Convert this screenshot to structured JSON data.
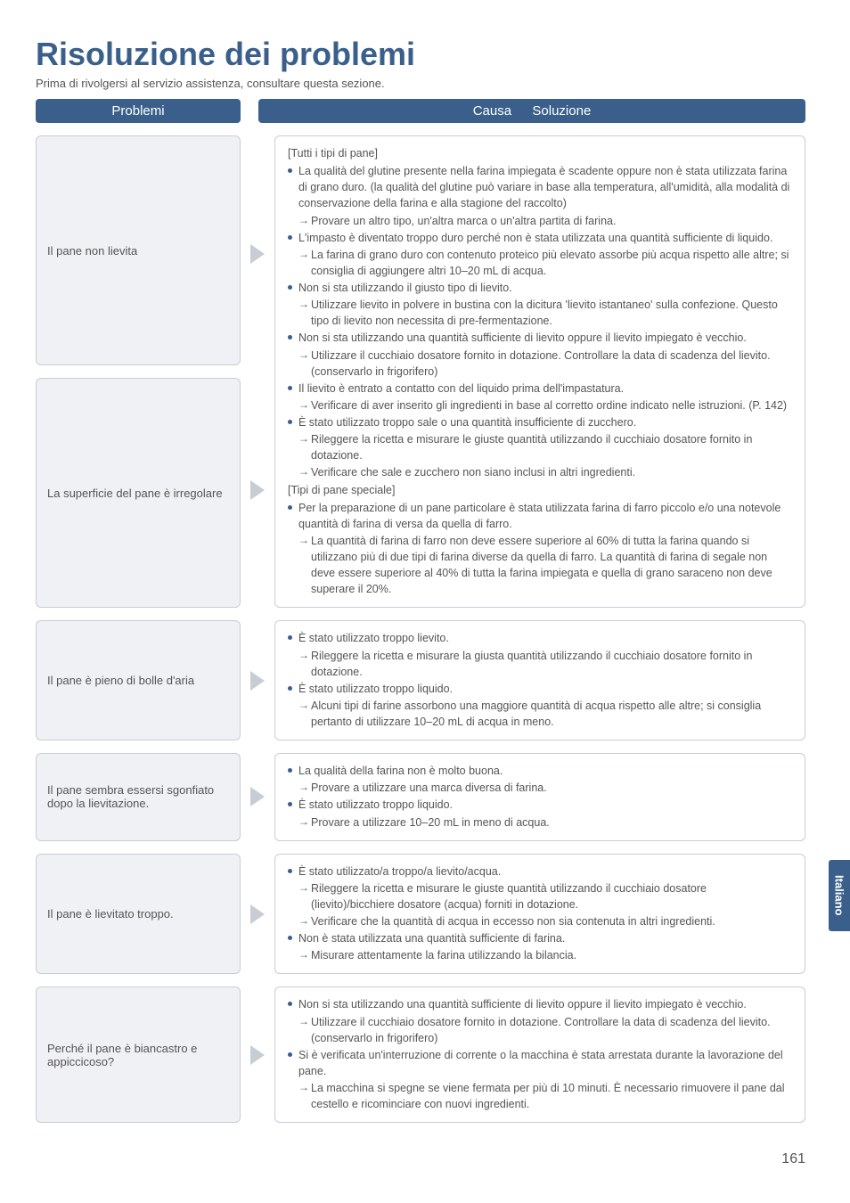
{
  "page": {
    "title": "Risoluzione dei problemi",
    "subtitle": "Prima di rivolgersi al servizio assistenza, consultare questa sezione.",
    "header_problems": "Problemi",
    "header_solution": "Causa → Soluzione",
    "side_tab": "Italiano",
    "page_number": "161"
  },
  "colors": {
    "brand": "#3a5f8a",
    "box_border": "#c8cdd4",
    "box_bg": "#f0f1f4",
    "text": "#555555",
    "bg": "#ffffff"
  },
  "rows": [
    {
      "problems": [
        "Il pane non lievita",
        "La superficie del pane è irregolare"
      ],
      "solution": {
        "groups": [
          {
            "type": "label",
            "text": "[Tutti i tipi di pane]"
          },
          {
            "type": "bul",
            "text": "La qualità del glutine presente nella farina impiegata è scadente oppure non è stata utilizzata farina di grano duro. (la qualità del glutine può variare in base alla temperatura, all'umidità, alla modalità di conservazione della farina e alla stagione del raccolto)"
          },
          {
            "type": "sol",
            "text": "Provare un altro tipo, un'altra marca o un'altra partita di farina."
          },
          {
            "type": "bul",
            "text": "L'impasto è diventato troppo duro perché non è stata utilizzata una quantità sufficiente di liquido."
          },
          {
            "type": "sol",
            "text": "La farina di grano duro con contenuto proteico più elevato assorbe più acqua rispetto alle altre; si consiglia di aggiungere altri 10–20 mL di acqua."
          },
          {
            "type": "bul",
            "text": "Non si sta utilizzando il giusto tipo di lievito."
          },
          {
            "type": "sol",
            "text": "Utilizzare lievito in polvere in bustina con la dicitura 'lievito istantaneo' sulla confezione. Questo tipo di lievito non necessita di pre-fermentazione."
          },
          {
            "type": "bul",
            "text": "Non si sta utilizzando una quantità sufficiente di lievito oppure il lievito impiegato è vecchio."
          },
          {
            "type": "sol",
            "text": "Utilizzare il cucchiaio dosatore fornito in dotazione. Controllare la data di scadenza del lievito. (conservarlo in frigorifero)"
          },
          {
            "type": "bul",
            "text": "Il lievito è entrato a contatto con del liquido prima dell'impastatura."
          },
          {
            "type": "sol",
            "text": "Verificare di aver inserito gli ingredienti in base al corretto ordine indicato nelle istruzioni. (P. 142)"
          },
          {
            "type": "bul",
            "text": "È stato utilizzato troppo sale o una quantità insufficiente di zucchero."
          },
          {
            "type": "sol",
            "text": "Rileggere la ricetta e misurare le giuste quantità utilizzando il cucchiaio dosatore fornito in dotazione."
          },
          {
            "type": "sol",
            "text": "Verificare che sale e zucchero non siano inclusi in altri ingredienti."
          },
          {
            "type": "label",
            "text": "[Tipi di pane speciale]"
          },
          {
            "type": "bul",
            "text": "Per la preparazione di un pane particolare è stata utilizzata farina di farro piccolo e/o una notevole quantità di farina di versa da quella di farro."
          },
          {
            "type": "sol",
            "text": "La quantità di farina di farro non deve essere superiore al 60% di tutta la farina quando si utilizzano più di due tipi di farina diverse da quella di farro. La quantità di farina di segale non deve essere superiore al 40% di tutta la farina impiegata e quella di grano saraceno non deve superare il 20%."
          }
        ]
      }
    },
    {
      "problems": [
        "Il pane è pieno di bolle d'aria"
      ],
      "solution": {
        "groups": [
          {
            "type": "bul",
            "text": "È stato utilizzato troppo lievito."
          },
          {
            "type": "sol",
            "text": "Rileggere la ricetta e misurare la giusta quantità utilizzando il cucchiaio dosatore fornito in dotazione."
          },
          {
            "type": "bul",
            "text": "È stato utilizzato troppo liquido."
          },
          {
            "type": "sol",
            "text": "Alcuni tipi di farine assorbono una maggiore quantità di acqua rispetto alle altre; si consiglia pertanto di utilizzare 10–20 mL di acqua in meno."
          }
        ]
      }
    },
    {
      "problems": [
        "Il pane sembra essersi sgonfiato dopo la lievitazione."
      ],
      "solution": {
        "groups": [
          {
            "type": "bul",
            "text": "La qualità della farina non è molto buona."
          },
          {
            "type": "sol",
            "text": "Provare a utilizzare una marca diversa di farina."
          },
          {
            "type": "bul",
            "text": "È stato utilizzato troppo liquido."
          },
          {
            "type": "sol",
            "text": "Provare a utilizzare 10–20 mL in meno di acqua."
          }
        ]
      }
    },
    {
      "problems": [
        "Il pane è lievitato troppo."
      ],
      "solution": {
        "groups": [
          {
            "type": "bul",
            "text": "È stato utilizzato/a troppo/a lievito/acqua."
          },
          {
            "type": "sol",
            "text": "Rileggere la ricetta e misurare le giuste quantità utilizzando il cucchiaio dosatore (lievito)/bicchiere dosatore (acqua) forniti in dotazione."
          },
          {
            "type": "sol",
            "text": "Verificare che la quantità di acqua in eccesso non sia contenuta in altri ingredienti."
          },
          {
            "type": "bul",
            "text": "Non è stata utilizzata una quantità sufficiente di farina."
          },
          {
            "type": "sol",
            "text": "Misurare attentamente la farina utilizzando la bilancia."
          }
        ]
      }
    },
    {
      "problems": [
        "Perché il pane è biancastro e appiccicoso?"
      ],
      "solution": {
        "groups": [
          {
            "type": "bul",
            "text": "Non si sta utilizzando una quantità sufficiente di lievito oppure il lievito impiegato è vecchio."
          },
          {
            "type": "sol",
            "text": "Utilizzare il cucchiaio dosatore fornito in dotazione. Controllare la data di scadenza del lievito. (conservarlo in frigorifero)"
          },
          {
            "type": "bul",
            "text": "Si è verificata un'interruzione di corrente o la macchina è stata arrestata durante la lavorazione del pane."
          },
          {
            "type": "sol",
            "text": "La macchina si spegne se viene fermata per più di 10 minuti. È necessario rimuovere il pane dal cestello e ricominciare con nuovi ingredienti."
          }
        ]
      }
    }
  ]
}
